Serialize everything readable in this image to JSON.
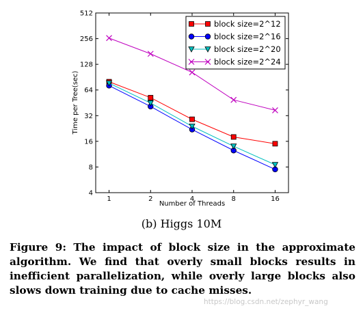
{
  "chart_data": {
    "type": "line",
    "xlabel": "Number of Threads",
    "ylabel": "Time per Tree(sec)",
    "x": [
      1,
      2,
      4,
      8,
      16
    ],
    "x_ticks": [
      "1",
      "2",
      "4",
      "8",
      "16"
    ],
    "y_ticks": [
      "4",
      "8",
      "16",
      "32",
      "64",
      "128",
      "256",
      "512"
    ],
    "y_tick_values": [
      4,
      8,
      16,
      32,
      64,
      128,
      256,
      512
    ],
    "xscale": "log2",
    "yscale": "log2",
    "ylim": [
      4,
      512
    ],
    "legend_position": "top-right",
    "series": [
      {
        "name": "block size=2^12",
        "color": "#ff0000",
        "marker": "square",
        "values": [
          80,
          52,
          29,
          18,
          15
        ]
      },
      {
        "name": "block size=2^16",
        "color": "#0000ff",
        "marker": "circle",
        "values": [
          72,
          41,
          22,
          12.5,
          7.5
        ]
      },
      {
        "name": "block size=2^20",
        "color": "#00bfbf",
        "marker": "triangle-down",
        "values": [
          77,
          45,
          24,
          14,
          8.5
        ]
      },
      {
        "name": "block size=2^24",
        "color": "#bf00bf",
        "marker": "x",
        "values": [
          260,
          170,
          103,
          49,
          37
        ]
      }
    ]
  },
  "subcaption": "(b) Higgs 10M",
  "caption": "Figure 9: The impact of block size in the approximate algorithm. We find that overly small blocks results in inefficient parallelization, while overly large blocks also slows down training due to cache misses.",
  "watermark": "https://blog.csdn.net/zephyr_wang"
}
